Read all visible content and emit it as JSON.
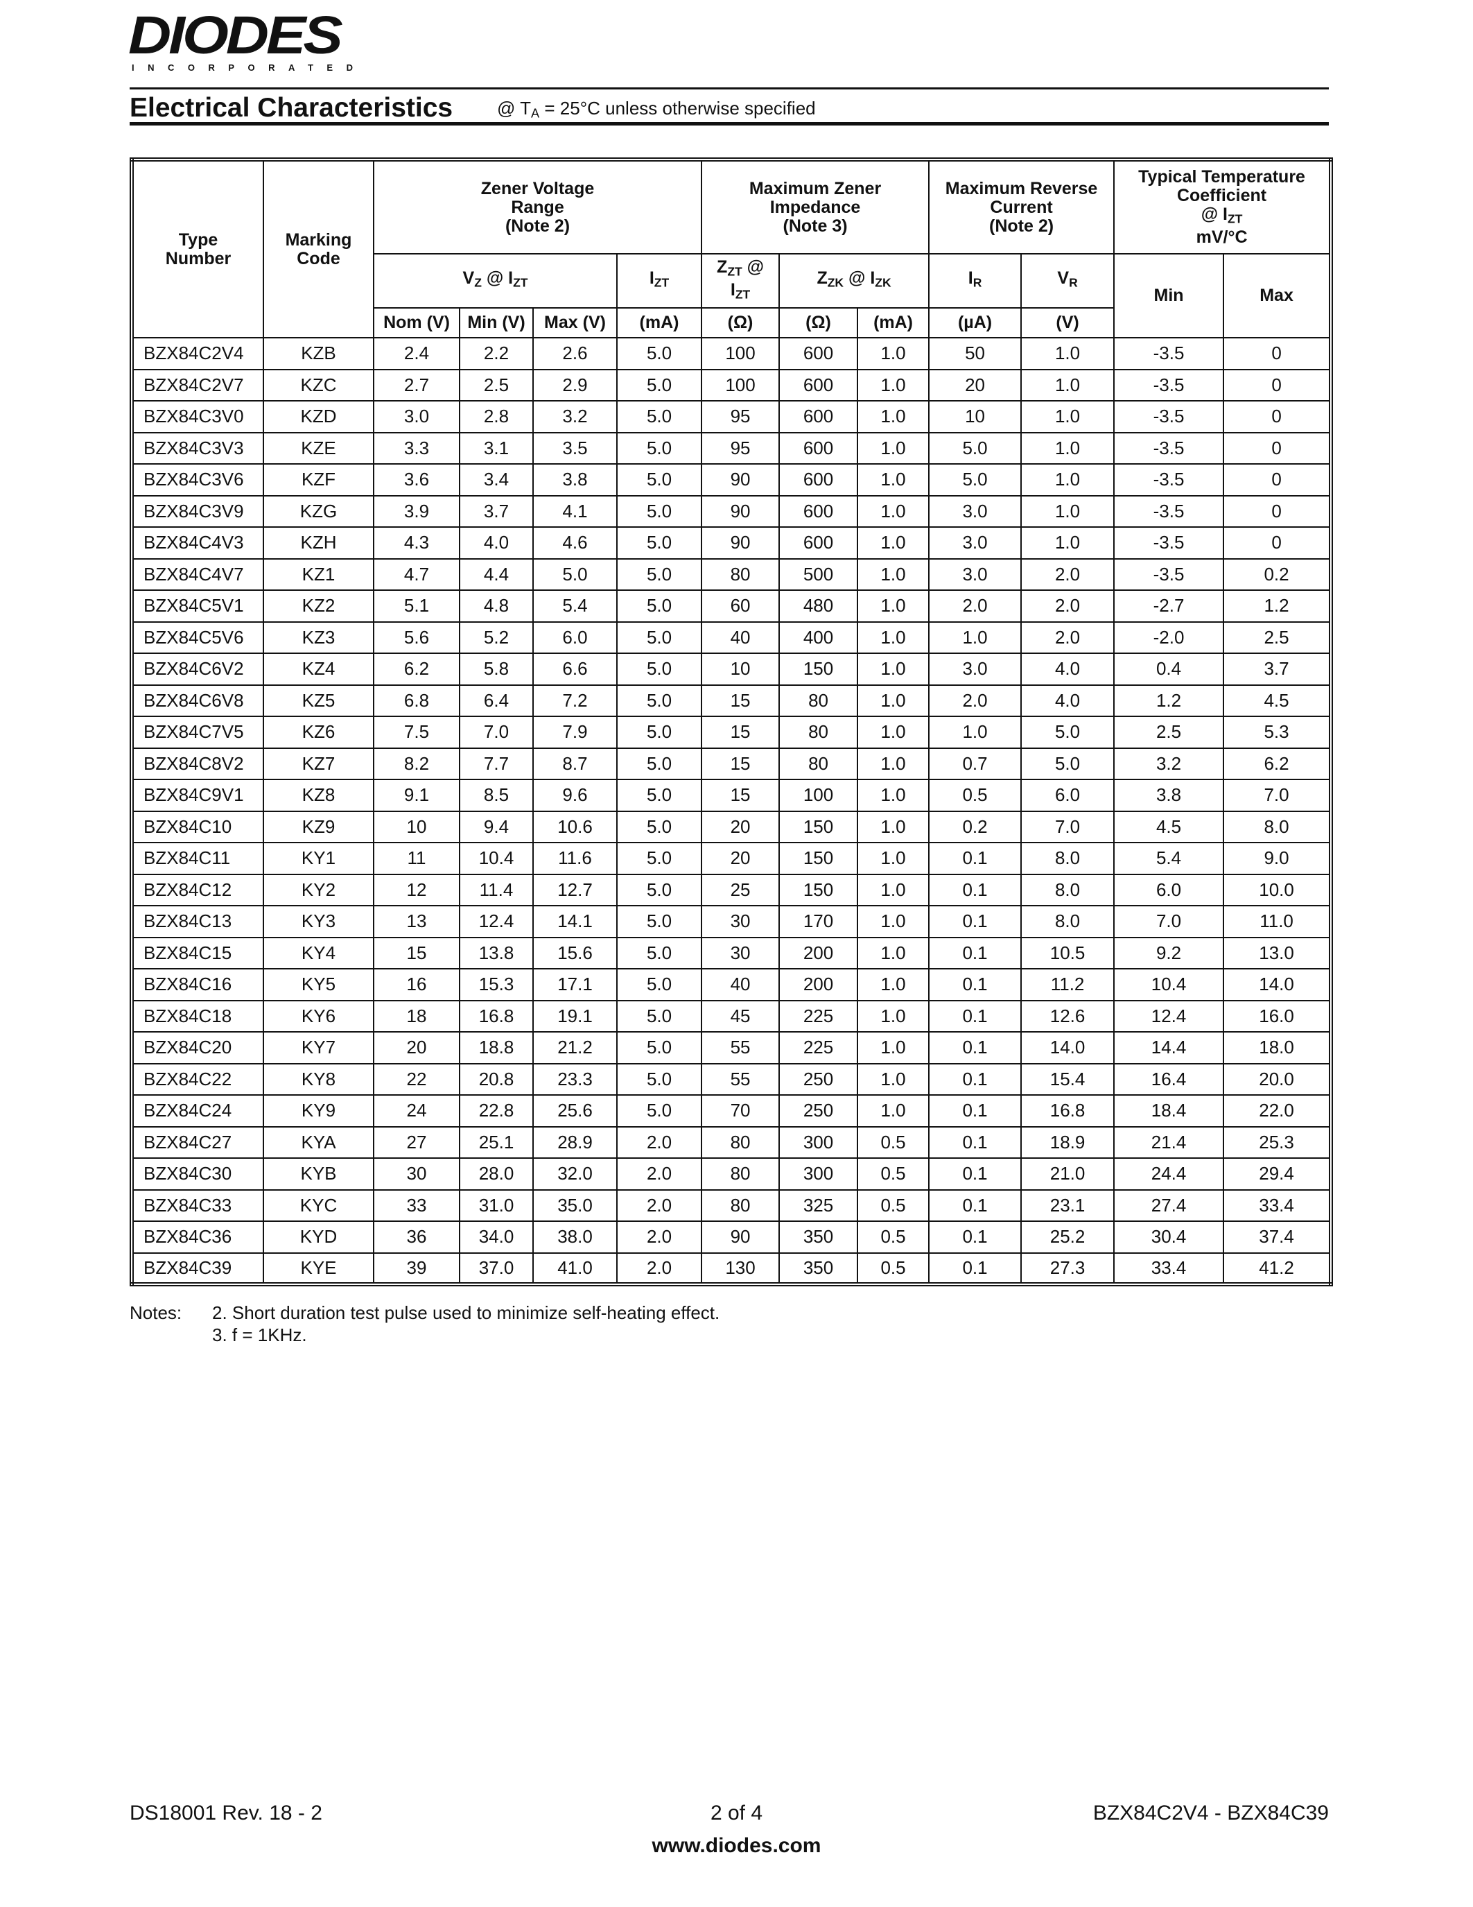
{
  "header": {
    "logo": "DIODES",
    "logo_sub": "INCORPORATED",
    "title": "Electrical Characteristics",
    "condition": [
      "@ T",
      {
        "sub": "A"
      },
      " = 25°C unless otherwise specified"
    ]
  },
  "table": {
    "header_rows": [
      [
        [
          [
            "Type"
          ],
          [
            "Number"
          ]
        ],
        [
          [
            "Marking"
          ],
          [
            "Code"
          ]
        ],
        [
          [
            "Zener Voltage"
          ],
          [
            "Range"
          ],
          [
            "(Note 2)"
          ]
        ],
        [
          [
            "Maximum Zener"
          ],
          [
            "Impedance"
          ],
          [
            "(Note 3)"
          ]
        ],
        [
          [
            "Maximum Reverse"
          ],
          [
            "Current"
          ],
          [
            "(Note 2)"
          ]
        ],
        [
          [
            "Typical Temperature"
          ],
          [
            "Coefficient"
          ],
          [
            "@ I",
            {
              "sub": "ZT"
            }
          ],
          [
            "mV/°C"
          ]
        ]
      ],
      [
        [
          [
            "V",
            {
              "sub": "Z"
            },
            " @ I",
            {
              "sub": "ZT"
            }
          ]
        ],
        [
          [
            "I",
            {
              "sub": "ZT"
            }
          ]
        ],
        [
          [
            "Z",
            {
              "sub": "ZT"
            },
            " @"
          ],
          [
            "I",
            {
              "sub": "ZT"
            }
          ]
        ],
        [
          [
            "Z",
            {
              "sub": "ZK"
            },
            " @ I",
            {
              "sub": "ZK"
            }
          ]
        ],
        [
          [
            "I",
            {
              "sub": "R"
            }
          ]
        ],
        [
          [
            "V",
            {
              "sub": "R"
            }
          ]
        ],
        [
          [
            "Min"
          ]
        ],
        [
          [
            "Max"
          ]
        ]
      ],
      [
        [
          [
            "Nom (V)"
          ]
        ],
        [
          [
            "Min (V)"
          ]
        ],
        [
          [
            "Max (V)"
          ]
        ],
        [
          [
            "(mA)"
          ]
        ],
        [
          [
            "(Ω)"
          ]
        ],
        [
          [
            "(Ω)"
          ]
        ],
        [
          [
            "(mA)"
          ]
        ],
        [
          [
            "(µA)"
          ]
        ],
        [
          [
            "(V)"
          ]
        ]
      ]
    ],
    "rows": [
      [
        "BZX84C2V4",
        "KZB",
        "2.4",
        "2.2",
        "2.6",
        "5.0",
        "100",
        "600",
        "1.0",
        "50",
        "1.0",
        "-3.5",
        "0"
      ],
      [
        "BZX84C2V7",
        "KZC",
        "2.7",
        "2.5",
        "2.9",
        "5.0",
        "100",
        "600",
        "1.0",
        "20",
        "1.0",
        "-3.5",
        "0"
      ],
      [
        "BZX84C3V0",
        "KZD",
        "3.0",
        "2.8",
        "3.2",
        "5.0",
        "95",
        "600",
        "1.0",
        "10",
        "1.0",
        "-3.5",
        "0"
      ],
      [
        "BZX84C3V3",
        "KZE",
        "3.3",
        "3.1",
        "3.5",
        "5.0",
        "95",
        "600",
        "1.0",
        "5.0",
        "1.0",
        "-3.5",
        "0"
      ],
      [
        "BZX84C3V6",
        "KZF",
        "3.6",
        "3.4",
        "3.8",
        "5.0",
        "90",
        "600",
        "1.0",
        "5.0",
        "1.0",
        "-3.5",
        "0"
      ],
      [
        "BZX84C3V9",
        "KZG",
        "3.9",
        "3.7",
        "4.1",
        "5.0",
        "90",
        "600",
        "1.0",
        "3.0",
        "1.0",
        "-3.5",
        "0"
      ],
      [
        "BZX84C4V3",
        "KZH",
        "4.3",
        "4.0",
        "4.6",
        "5.0",
        "90",
        "600",
        "1.0",
        "3.0",
        "1.0",
        "-3.5",
        "0"
      ],
      [
        "BZX84C4V7",
        "KZ1",
        "4.7",
        "4.4",
        "5.0",
        "5.0",
        "80",
        "500",
        "1.0",
        "3.0",
        "2.0",
        "-3.5",
        "0.2"
      ],
      [
        "BZX84C5V1",
        "KZ2",
        "5.1",
        "4.8",
        "5.4",
        "5.0",
        "60",
        "480",
        "1.0",
        "2.0",
        "2.0",
        "-2.7",
        "1.2"
      ],
      [
        "BZX84C5V6",
        "KZ3",
        "5.6",
        "5.2",
        "6.0",
        "5.0",
        "40",
        "400",
        "1.0",
        "1.0",
        "2.0",
        "-2.0",
        "2.5"
      ],
      [
        "BZX84C6V2",
        "KZ4",
        "6.2",
        "5.8",
        "6.6",
        "5.0",
        "10",
        "150",
        "1.0",
        "3.0",
        "4.0",
        "0.4",
        "3.7"
      ],
      [
        "BZX84C6V8",
        "KZ5",
        "6.8",
        "6.4",
        "7.2",
        "5.0",
        "15",
        "80",
        "1.0",
        "2.0",
        "4.0",
        "1.2",
        "4.5"
      ],
      [
        "BZX84C7V5",
        "KZ6",
        "7.5",
        "7.0",
        "7.9",
        "5.0",
        "15",
        "80",
        "1.0",
        "1.0",
        "5.0",
        "2.5",
        "5.3"
      ],
      [
        "BZX84C8V2",
        "KZ7",
        "8.2",
        "7.7",
        "8.7",
        "5.0",
        "15",
        "80",
        "1.0",
        "0.7",
        "5.0",
        "3.2",
        "6.2"
      ],
      [
        "BZX84C9V1",
        "KZ8",
        "9.1",
        "8.5",
        "9.6",
        "5.0",
        "15",
        "100",
        "1.0",
        "0.5",
        "6.0",
        "3.8",
        "7.0"
      ],
      [
        "BZX84C10",
        "KZ9",
        "10",
        "9.4",
        "10.6",
        "5.0",
        "20",
        "150",
        "1.0",
        "0.2",
        "7.0",
        "4.5",
        "8.0"
      ],
      [
        "BZX84C11",
        "KY1",
        "11",
        "10.4",
        "11.6",
        "5.0",
        "20",
        "150",
        "1.0",
        "0.1",
        "8.0",
        "5.4",
        "9.0"
      ],
      [
        "BZX84C12",
        "KY2",
        "12",
        "11.4",
        "12.7",
        "5.0",
        "25",
        "150",
        "1.0",
        "0.1",
        "8.0",
        "6.0",
        "10.0"
      ],
      [
        "BZX84C13",
        "KY3",
        "13",
        "12.4",
        "14.1",
        "5.0",
        "30",
        "170",
        "1.0",
        "0.1",
        "8.0",
        "7.0",
        "11.0"
      ],
      [
        "BZX84C15",
        "KY4",
        "15",
        "13.8",
        "15.6",
        "5.0",
        "30",
        "200",
        "1.0",
        "0.1",
        "10.5",
        "9.2",
        "13.0"
      ],
      [
        "BZX84C16",
        "KY5",
        "16",
        "15.3",
        "17.1",
        "5.0",
        "40",
        "200",
        "1.0",
        "0.1",
        "11.2",
        "10.4",
        "14.0"
      ],
      [
        "BZX84C18",
        "KY6",
        "18",
        "16.8",
        "19.1",
        "5.0",
        "45",
        "225",
        "1.0",
        "0.1",
        "12.6",
        "12.4",
        "16.0"
      ],
      [
        "BZX84C20",
        "KY7",
        "20",
        "18.8",
        "21.2",
        "5.0",
        "55",
        "225",
        "1.0",
        "0.1",
        "14.0",
        "14.4",
        "18.0"
      ],
      [
        "BZX84C22",
        "KY8",
        "22",
        "20.8",
        "23.3",
        "5.0",
        "55",
        "250",
        "1.0",
        "0.1",
        "15.4",
        "16.4",
        "20.0"
      ],
      [
        "BZX84C24",
        "KY9",
        "24",
        "22.8",
        "25.6",
        "5.0",
        "70",
        "250",
        "1.0",
        "0.1",
        "16.8",
        "18.4",
        "22.0"
      ],
      [
        "BZX84C27",
        "KYA",
        "27",
        "25.1",
        "28.9",
        "2.0",
        "80",
        "300",
        "0.5",
        "0.1",
        "18.9",
        "21.4",
        "25.3"
      ],
      [
        "BZX84C30",
        "KYB",
        "30",
        "28.0",
        "32.0",
        "2.0",
        "80",
        "300",
        "0.5",
        "0.1",
        "21.0",
        "24.4",
        "29.4"
      ],
      [
        "BZX84C33",
        "KYC",
        "33",
        "31.0",
        "35.0",
        "2.0",
        "80",
        "325",
        "0.5",
        "0.1",
        "23.1",
        "27.4",
        "33.4"
      ],
      [
        "BZX84C36",
        "KYD",
        "36",
        "34.0",
        "38.0",
        "2.0",
        "90",
        "350",
        "0.5",
        "0.1",
        "25.2",
        "30.4",
        "37.4"
      ],
      [
        "BZX84C39",
        "KYE",
        "39",
        "37.0",
        "41.0",
        "2.0",
        "130",
        "350",
        "0.5",
        "0.1",
        "27.3",
        "33.4",
        "41.2"
      ]
    ]
  },
  "notes": {
    "label": "Notes:",
    "items": [
      "2. Short duration test pulse used to minimize self-heating effect.",
      "3. f = 1KHz."
    ]
  },
  "footer": {
    "doc_id": "DS18001 Rev. 18 - 2",
    "page": "2 of 4",
    "parts": "BZX84C2V4 - BZX84C39",
    "url": "www.diodes.com"
  }
}
